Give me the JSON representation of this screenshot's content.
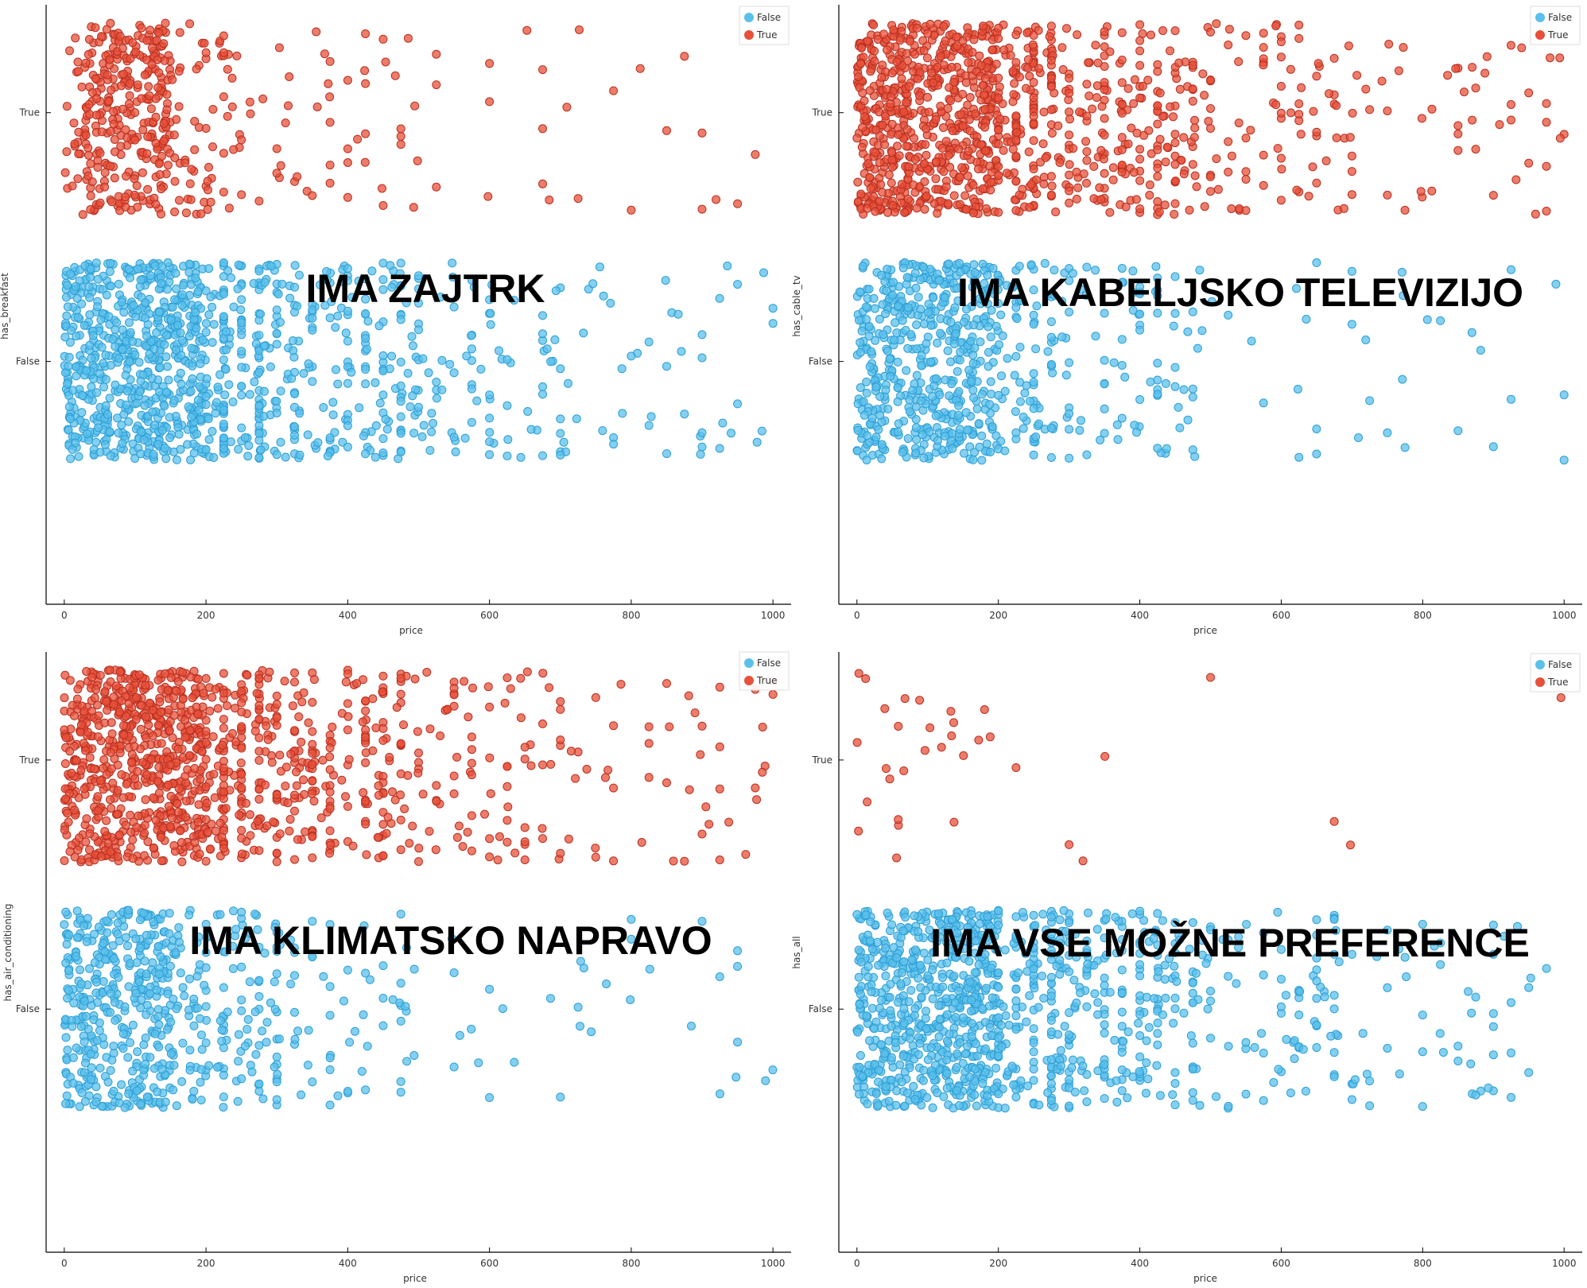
{
  "colors": {
    "false": "#5BC0EB",
    "true": "#E8503A",
    "false_stroke": "#2E9FD6",
    "true_stroke": "#B83020"
  },
  "chart_data": [
    {
      "type": "scatter",
      "overlay_title": "IMA ZAJTRK",
      "xlabel": "price",
      "ylabel": "has_breakfast",
      "xlim": [
        -20,
        1020
      ],
      "xticks": [
        "0",
        "200",
        "400",
        "600",
        "800",
        "1000"
      ],
      "yticks": [
        "True",
        "False"
      ],
      "legend": [
        "False",
        "True"
      ],
      "legend_position": "top-right",
      "series": [
        {
          "name": "False",
          "density": [
            [
              0,
              200,
              1.0
            ],
            [
              200,
              300,
              0.55
            ],
            [
              300,
              500,
              0.3
            ],
            [
              500,
              700,
              0.12
            ],
            [
              700,
              1000,
              0.05
            ]
          ]
        },
        {
          "name": "True",
          "density": [
            [
              0,
              30,
              0.25
            ],
            [
              30,
              150,
              0.75
            ],
            [
              150,
              250,
              0.2
            ],
            [
              250,
              500,
              0.06
            ],
            [
              500,
              1000,
              0.015
            ]
          ]
        }
      ]
    },
    {
      "type": "scatter",
      "overlay_title": "IMA KABELJSKO TELEVIZIJO",
      "xlabel": "price",
      "ylabel": "has_cable_tv",
      "xlim": [
        -20,
        1020
      ],
      "xticks": [
        "0",
        "200",
        "400",
        "600",
        "800",
        "1000"
      ],
      "yticks": [
        "True",
        "False"
      ],
      "legend": [
        "False",
        "True"
      ],
      "legend_position": "top-right",
      "series": [
        {
          "name": "False",
          "density": [
            [
              0,
              200,
              0.8
            ],
            [
              200,
              300,
              0.3
            ],
            [
              300,
              500,
              0.12
            ],
            [
              500,
              1000,
              0.02
            ]
          ]
        },
        {
          "name": "True",
          "density": [
            [
              0,
              200,
              1.0
            ],
            [
              200,
              300,
              0.55
            ],
            [
              300,
              500,
              0.3
            ],
            [
              500,
              700,
              0.12
            ],
            [
              700,
              1000,
              0.05
            ]
          ]
        }
      ]
    },
    {
      "type": "scatter",
      "overlay_title": "IMA KLIMATSKO NAPRAVO",
      "xlabel": "price",
      "ylabel": "has_air_conditioning",
      "xlim": [
        -20,
        1020
      ],
      "xticks": [
        "0",
        "200",
        "400",
        "600",
        "800",
        "1000"
      ],
      "yticks": [
        "True",
        "False"
      ],
      "legend": [
        "False",
        "True"
      ],
      "legend_position": "top-right",
      "series": [
        {
          "name": "False",
          "density": [
            [
              0,
              150,
              0.8
            ],
            [
              150,
              300,
              0.3
            ],
            [
              300,
              500,
              0.1
            ],
            [
              500,
              1000,
              0.02
            ]
          ]
        },
        {
          "name": "True",
          "density": [
            [
              0,
              200,
              1.0
            ],
            [
              200,
              300,
              0.55
            ],
            [
              300,
              500,
              0.3
            ],
            [
              500,
              700,
              0.12
            ],
            [
              700,
              1000,
              0.05
            ]
          ]
        }
      ]
    },
    {
      "type": "scatter",
      "overlay_title": "IMA VSE MOŽNE PREFERENCE",
      "xlabel": "price",
      "ylabel": "has_all",
      "xlim": [
        -20,
        1020
      ],
      "xticks": [
        "0",
        "200",
        "400",
        "600",
        "800",
        "1000"
      ],
      "yticks": [
        "True",
        "False"
      ],
      "legend": [
        "False",
        "True"
      ],
      "legend_position": "top-right",
      "series": [
        {
          "name": "False",
          "density": [
            [
              0,
              200,
              1.0
            ],
            [
              200,
              300,
              0.55
            ],
            [
              300,
              500,
              0.3
            ],
            [
              500,
              700,
              0.12
            ],
            [
              700,
              1000,
              0.05
            ]
          ]
        },
        {
          "name": "True",
          "density": [
            [
              0,
              200,
              0.04
            ],
            [
              200,
              1000,
              0.003
            ]
          ]
        }
      ]
    }
  ]
}
